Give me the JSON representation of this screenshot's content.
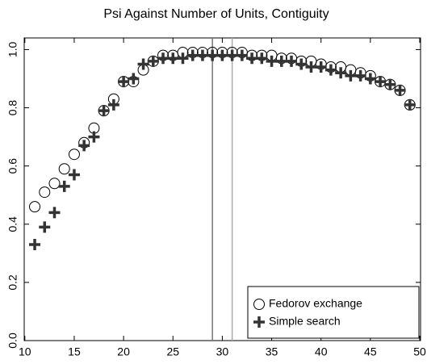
{
  "chart_data": {
    "type": "scatter",
    "title": "Psi Against Number of Units, Contiguity",
    "x": [
      11,
      12,
      13,
      14,
      15,
      16,
      17,
      18,
      19,
      20,
      21,
      22,
      23,
      24,
      25,
      26,
      27,
      28,
      29,
      30,
      31,
      32,
      33,
      34,
      35,
      36,
      37,
      38,
      39,
      40,
      41,
      42,
      43,
      44,
      45,
      46,
      47,
      48,
      49
    ],
    "series": [
      {
        "name": "Fedorov exchange",
        "color": "#000000",
        "marker": "circle",
        "values": [
          0.46,
          0.51,
          0.54,
          0.59,
          0.64,
          0.68,
          0.73,
          0.79,
          0.83,
          0.89,
          0.89,
          0.93,
          0.96,
          0.98,
          0.98,
          0.99,
          0.99,
          0.99,
          0.99,
          0.99,
          0.99,
          0.99,
          0.98,
          0.98,
          0.98,
          0.97,
          0.97,
          0.96,
          0.96,
          0.95,
          0.94,
          0.94,
          0.93,
          0.92,
          0.91,
          0.89,
          0.88,
          0.86,
          0.81
        ]
      },
      {
        "name": "Simple search",
        "color": "#333333",
        "marker": "plus",
        "values": [
          0.33,
          0.39,
          0.44,
          0.53,
          0.57,
          0.67,
          0.7,
          0.79,
          0.81,
          0.89,
          0.9,
          0.95,
          0.96,
          0.97,
          0.97,
          0.97,
          0.98,
          0.98,
          0.98,
          0.98,
          0.98,
          0.98,
          0.97,
          0.97,
          0.96,
          0.96,
          0.96,
          0.95,
          0.94,
          0.94,
          0.93,
          0.92,
          0.91,
          0.91,
          0.9,
          0.89,
          0.88,
          0.86,
          0.81
        ]
      }
    ],
    "vlines": [
      {
        "x": 29,
        "color": "#777777"
      },
      {
        "x": 31,
        "color": "#aaaaaa"
      }
    ],
    "xlim": [
      10,
      50
    ],
    "xticks": [
      10,
      15,
      20,
      25,
      30,
      35,
      40,
      45,
      50
    ],
    "ylim": [
      0,
      1.04
    ],
    "yticks": [
      {
        "value": 0,
        "label": "0.0"
      },
      0.2,
      0.4,
      0.6,
      0.8,
      {
        "value": 1,
        "label": "1.0"
      }
    ],
    "legend": "lower right",
    "grid": false
  }
}
